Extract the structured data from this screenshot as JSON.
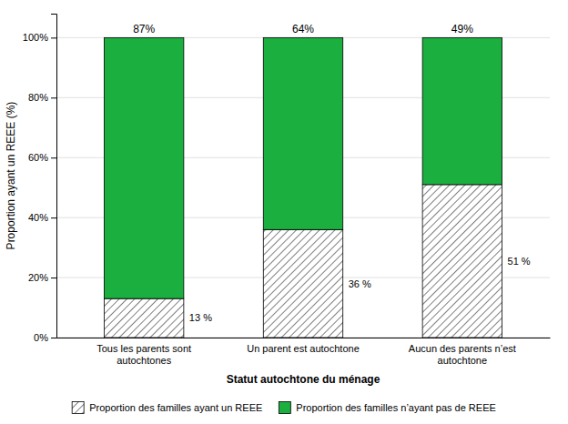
{
  "chart_data": {
    "type": "bar",
    "stacked": true,
    "categories": [
      "Tous les parents sont\nautochtones",
      "Un parent est autochtone",
      "Aucun des parents n’est\nautochtone"
    ],
    "series": [
      {
        "name": "Proportion des familles ayant un REEE",
        "color": "#ffffff",
        "values": [
          13,
          36,
          51
        ],
        "value_labels": [
          "13 %",
          "36 %",
          "51 %"
        ]
      },
      {
        "name": "Proportion des familles n’ayant pas de REEE",
        "color": "#1aaf3e",
        "values": [
          87,
          64,
          49
        ],
        "value_labels": [
          "87%",
          "64%",
          "49%"
        ]
      }
    ],
    "xlabel": "Statut autochtone du ménage",
    "ylabel": "Proportion ayant un REEE (%)",
    "ylim": [
      0,
      108
    ],
    "yticks": [
      {
        "value": 0,
        "label": "0%"
      },
      {
        "value": 20,
        "label": "20%"
      },
      {
        "value": 40,
        "label": "40%"
      },
      {
        "value": 60,
        "label": "60%"
      },
      {
        "value": 80,
        "label": "80%"
      },
      {
        "value": 100,
        "label": "100%"
      }
    ],
    "grid": true,
    "data_labels": true,
    "legend": "bottom"
  }
}
